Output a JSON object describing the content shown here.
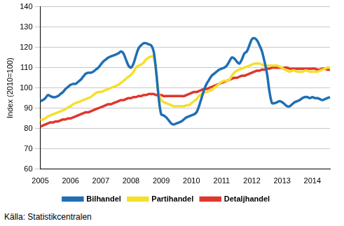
{
  "chart_data": {
    "type": "line",
    "y_label": "Index (2010=100)",
    "categories": [
      "2005",
      null,
      null,
      null,
      null,
      null,
      null,
      null,
      null,
      null,
      null,
      null,
      "2006",
      null,
      null,
      null,
      null,
      null,
      null,
      null,
      null,
      null,
      null,
      null,
      "2007",
      null,
      null,
      null,
      null,
      null,
      null,
      null,
      null,
      null,
      null,
      null,
      "2008",
      null,
      null,
      null,
      null,
      null,
      null,
      null,
      null,
      null,
      null,
      null,
      "2009",
      null,
      null,
      null,
      null,
      null,
      null,
      null,
      null,
      null,
      null,
      null,
      "2010",
      null,
      null,
      null,
      null,
      null,
      null,
      null,
      null,
      null,
      null,
      null,
      "2011",
      null,
      null,
      null,
      null,
      null,
      null,
      null,
      null,
      null,
      null,
      null,
      "2012",
      null,
      null,
      null,
      null,
      null,
      null,
      null,
      null,
      null,
      null,
      null,
      "2013",
      null,
      null,
      null,
      null,
      null,
      null,
      null,
      null,
      null,
      null,
      null,
      "2014",
      null,
      null,
      null,
      null,
      null,
      null,
      null
    ],
    "series": [
      {
        "name": "Bilhandel",
        "color": "#1f6fb4",
        "values": [
          93.5,
          94,
          95,
          96.5,
          96,
          95.5,
          95.5,
          96,
          97,
          98,
          99.5,
          100.5,
          101.5,
          102,
          102,
          103,
          104,
          105.5,
          107,
          107.5,
          107.5,
          108,
          109,
          110,
          111.5,
          113,
          114,
          115,
          115.5,
          116,
          116.5,
          117,
          118,
          117,
          114,
          111,
          110,
          112,
          116,
          119.5,
          121,
          122,
          122,
          121.5,
          121,
          118,
          108,
          95,
          87,
          86.5,
          85.5,
          84,
          82.5,
          82,
          82.5,
          83,
          83.5,
          84.5,
          85.5,
          86,
          86.5,
          87,
          88,
          91,
          95,
          99,
          102,
          104,
          106,
          107,
          108,
          109,
          109.5,
          110,
          111,
          113,
          115,
          114.5,
          113,
          112,
          114,
          117,
          118,
          121,
          124,
          124.5,
          123.5,
          121,
          118,
          113,
          107,
          98,
          92.5,
          92.5,
          93,
          93.5,
          93,
          92,
          91,
          91,
          92,
          93,
          93.5,
          94,
          95,
          95.5,
          95.5,
          95,
          95.5,
          95,
          95,
          94.5,
          94,
          94.5,
          95,
          95.5
        ]
      },
      {
        "name": "Partihandel",
        "color": "#f5df2e",
        "values": [
          84,
          84.5,
          85,
          86,
          86.5,
          87,
          87.5,
          88,
          88.5,
          89,
          89.5,
          90.5,
          91,
          92,
          92.5,
          93,
          93.5,
          94,
          94.5,
          95,
          95.5,
          96.5,
          97.5,
          98,
          98,
          98.5,
          99,
          99.5,
          100,
          100.5,
          101,
          101.5,
          102.5,
          103.5,
          104.5,
          105.5,
          106.5,
          108,
          110,
          111,
          111.5,
          112.5,
          114,
          115,
          115.5,
          115.5,
          108,
          97,
          94,
          93,
          92.5,
          92,
          91.5,
          91,
          91,
          91,
          91,
          91,
          91.5,
          91.5,
          92.5,
          93.5,
          94.5,
          96,
          97,
          97.5,
          98,
          98.5,
          99,
          100,
          101,
          102,
          103,
          103.5,
          103.5,
          104,
          106,
          107.5,
          108.5,
          109,
          109.5,
          110,
          110.5,
          111,
          111.5,
          112,
          112,
          112,
          111.5,
          111,
          111,
          111,
          111,
          111,
          111,
          110.5,
          110,
          109,
          108.5,
          108,
          108.5,
          108.5,
          108,
          108,
          108,
          108.5,
          108.5,
          108,
          108,
          108,
          108,
          108.5,
          109,
          109.5,
          110,
          110
        ]
      },
      {
        "name": "Detaljhandel",
        "color": "#e0362c",
        "values": [
          81,
          81.5,
          82,
          82.5,
          83,
          83,
          83.5,
          83.5,
          84,
          84.5,
          84.5,
          85,
          85,
          85.5,
          86,
          86.5,
          87,
          87.5,
          88,
          88,
          88.5,
          89,
          89.5,
          90,
          90.5,
          91,
          91.5,
          92,
          92,
          92.5,
          93,
          93.5,
          94,
          94,
          94.5,
          95,
          95,
          95.5,
          95.5,
          96,
          96,
          96.5,
          96.5,
          97,
          97,
          97,
          96.5,
          96.5,
          96.5,
          96,
          96,
          96,
          96,
          96,
          96,
          96,
          96,
          96,
          96.5,
          97,
          97.5,
          98,
          98,
          98.5,
          99,
          99.5,
          99.5,
          100,
          100.5,
          101,
          101.5,
          102,
          102.5,
          103,
          103.5,
          104,
          104.5,
          105,
          105,
          105.5,
          106,
          106,
          106.5,
          107,
          107.5,
          108,
          108.5,
          108.5,
          109,
          109,
          109.5,
          109.5,
          110,
          110,
          110,
          110,
          110,
          110,
          110,
          109.5,
          109.5,
          109.5,
          109.5,
          109.5,
          109.5,
          109.5,
          109.5,
          109.5,
          109.5,
          109.5,
          109,
          109,
          109.5,
          109.5,
          109,
          109
        ]
      }
    ],
    "ylim": [
      60,
      140
    ],
    "yticks": [
      60,
      70,
      80,
      90,
      100,
      110,
      120,
      130,
      140
    ],
    "grid": true,
    "legend": "bottom",
    "source": "Källa: Statistikcentralen"
  }
}
